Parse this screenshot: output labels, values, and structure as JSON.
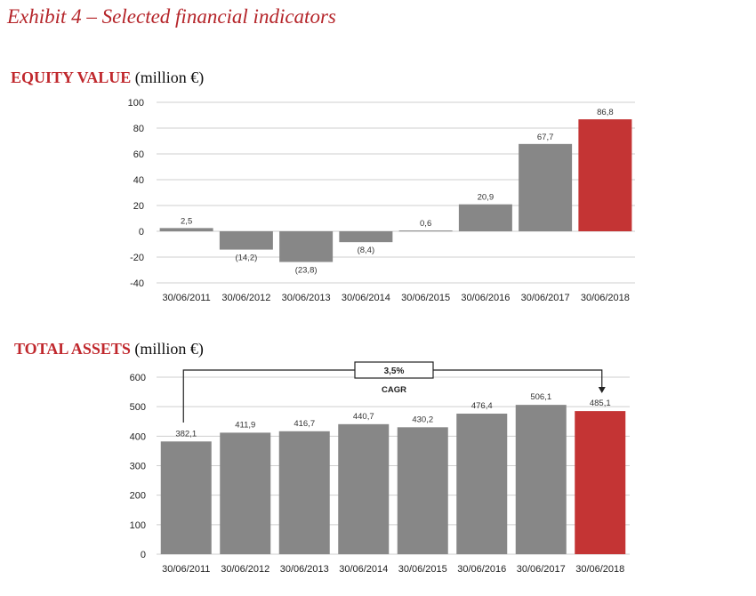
{
  "exhibit_title": "Exhibit 4 – Selected financial indicators",
  "equity_section": {
    "title_bold": "EQUITY VALUE",
    "title_unit": "(million €)"
  },
  "assets_section": {
    "title_bold": "TOTAL ASSETS",
    "title_unit": "(million €)"
  },
  "colors": {
    "bar": "#878787",
    "highlight": "#c43434",
    "grid": "#cfcfcf",
    "title_red": "#b5252a"
  },
  "chart_data": [
    {
      "type": "bar",
      "title": "EQUITY VALUE (million €)",
      "categories": [
        "30/06/2011",
        "30/06/2012",
        "30/06/2013",
        "30/06/2014",
        "30/06/2015",
        "30/06/2016",
        "30/06/2017",
        "30/06/2018"
      ],
      "values": [
        2.5,
        -14.2,
        -23.8,
        -8.4,
        0.6,
        20.9,
        67.7,
        86.8
      ],
      "value_labels": [
        "2,5",
        "(14,2)",
        "(23,8)",
        "(8,4)",
        "0,6",
        "20,9",
        "67,7",
        "86,8"
      ],
      "highlight_index": 7,
      "ylim": [
        -40,
        100
      ],
      "yticks": [
        100,
        80,
        60,
        40,
        20,
        0,
        -20,
        -40
      ],
      "grid": true
    },
    {
      "type": "bar",
      "title": "TOTAL ASSETS (million €)",
      "categories": [
        "30/06/2011",
        "30/06/2012",
        "30/06/2013",
        "30/06/2014",
        "30/06/2015",
        "30/06/2016",
        "30/06/2017",
        "30/06/2018"
      ],
      "values": [
        382.1,
        411.9,
        416.7,
        440.7,
        430.2,
        476.4,
        506.1,
        485.1
      ],
      "value_labels": [
        "382,1",
        "411,9",
        "416,7",
        "440,7",
        "430,2",
        "476,4",
        "506,1",
        "485,1"
      ],
      "highlight_index": 7,
      "ylim": [
        0,
        600
      ],
      "yticks": [
        600,
        500,
        400,
        300,
        200,
        100,
        0
      ],
      "grid": true,
      "annotation": {
        "value": "3,5%",
        "label": "CAGR",
        "from_index": 0,
        "to_index": 7
      }
    }
  ]
}
